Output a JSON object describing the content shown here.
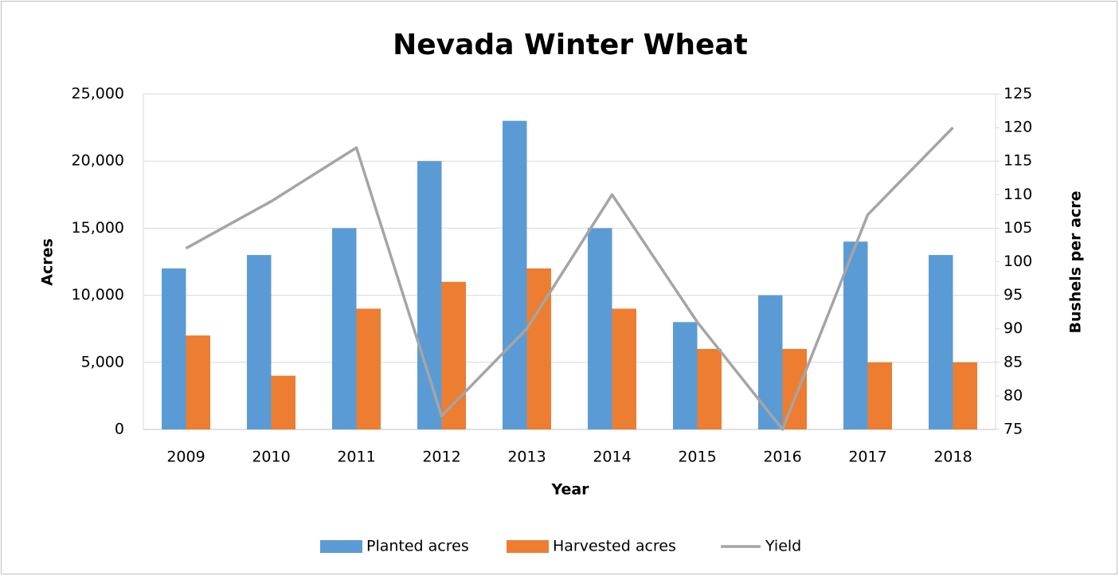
{
  "chart_data": {
    "type": "bar",
    "title": "Nevada Winter Wheat",
    "x_label": "Year",
    "y_label": "Acres",
    "y2_label": "Bushels per acre",
    "categories": [
      "2009",
      "2010",
      "2011",
      "2012",
      "2013",
      "2014",
      "2015",
      "2016",
      "2017",
      "2018"
    ],
    "series": [
      {
        "name": "Planted acres",
        "type": "bar",
        "color": "#5b9bd5",
        "values": [
          12000,
          13000,
          15000,
          20000,
          23000,
          15000,
          8000,
          10000,
          14000,
          13000
        ]
      },
      {
        "name": "Harvested acres",
        "type": "bar",
        "color": "#ed7d31",
        "values": [
          7000,
          4000,
          9000,
          11000,
          12000,
          9000,
          6000,
          6000,
          5000,
          5000
        ]
      },
      {
        "name": "Yield",
        "type": "line",
        "axis": "y2",
        "color": "#a5a5a5",
        "values": [
          102,
          109,
          117,
          77,
          90,
          110,
          91,
          75,
          107,
          120
        ]
      }
    ],
    "ylim": [
      0,
      25000
    ],
    "yticks": [
      0,
      {
        "value": 5000,
        "label": "5,000"
      },
      {
        "value": 10000,
        "label": "10,000"
      },
      {
        "value": 15000,
        "label": "15,000"
      },
      {
        "value": 20000,
        "label": "20,000"
      },
      {
        "value": 25000,
        "label": "25,000"
      }
    ],
    "y2lim": [
      75,
      125
    ],
    "y2ticks": [
      75,
      80,
      85,
      90,
      95,
      100,
      105,
      110,
      115,
      120,
      125
    ],
    "grid": true,
    "legend": "bottom"
  }
}
